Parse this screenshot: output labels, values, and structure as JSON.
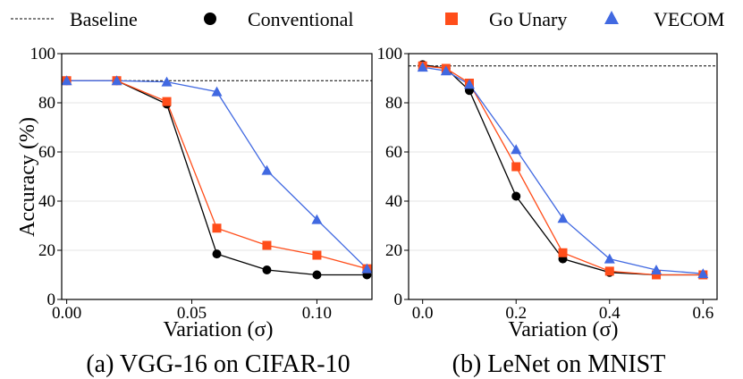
{
  "legend": {
    "baseline": "Baseline",
    "conventional": "Conventional",
    "go_unary": "Go Unary",
    "vecom": "VECOM"
  },
  "colors": {
    "conventional": "#000000",
    "go_unary": "#ff4d1a",
    "vecom": "#4169e1",
    "baseline": "#000000"
  },
  "chart_data": [
    {
      "type": "line",
      "caption": "(a) VGG-16 on CIFAR-10",
      "xlabel": "Variation (σ)",
      "ylabel": "Accuracy (%)",
      "xlim": [
        -0.002,
        0.122
      ],
      "ylim": [
        0,
        100
      ],
      "xticks": [
        0.0,
        0.05,
        0.1
      ],
      "xtick_labels": [
        "0.00",
        "0.05",
        "0.10"
      ],
      "yticks": [
        0,
        20,
        40,
        60,
        80,
        100
      ],
      "ytick_labels": [
        "0",
        "20",
        "40",
        "60",
        "80",
        "100"
      ],
      "baseline": 89,
      "x": [
        0.0,
        0.02,
        0.04,
        0.06,
        0.08,
        0.1,
        0.12
      ],
      "series": [
        {
          "name": "Conventional",
          "values": [
            89,
            89,
            79.5,
            18.5,
            12,
            10,
            10
          ]
        },
        {
          "name": "Go Unary",
          "values": [
            89,
            89,
            80.5,
            29,
            22,
            18,
            12.5
          ]
        },
        {
          "name": "VECOM",
          "values": [
            89,
            89,
            88.5,
            84.5,
            52.5,
            32.5,
            12.5
          ]
        }
      ]
    },
    {
      "type": "line",
      "caption": "(b) LeNet on MNIST",
      "xlabel": "Variation (σ)",
      "ylabel": "",
      "xlim": [
        -0.03,
        0.63
      ],
      "ylim": [
        0,
        100
      ],
      "xticks": [
        0.0,
        0.2,
        0.4,
        0.6
      ],
      "xtick_labels": [
        "0.0",
        "0.2",
        "0.4",
        "0.6"
      ],
      "yticks": [
        0,
        20,
        40,
        60,
        80,
        100
      ],
      "ytick_labels": [
        "0",
        "20",
        "40",
        "60",
        "80",
        "100"
      ],
      "baseline": 95,
      "x": [
        0.0,
        0.05,
        0.1,
        0.2,
        0.3,
        0.4,
        0.5,
        0.6
      ],
      "series": [
        {
          "name": "Conventional",
          "values": [
            95.5,
            94,
            85,
            42,
            16.5,
            11,
            10,
            10
          ]
        },
        {
          "name": "Go Unary",
          "values": [
            95,
            94,
            88,
            54,
            19,
            11.5,
            10,
            10
          ]
        },
        {
          "name": "VECOM",
          "values": [
            94.5,
            93,
            87.5,
            61,
            33,
            16.5,
            12,
            10.5
          ]
        }
      ]
    }
  ]
}
